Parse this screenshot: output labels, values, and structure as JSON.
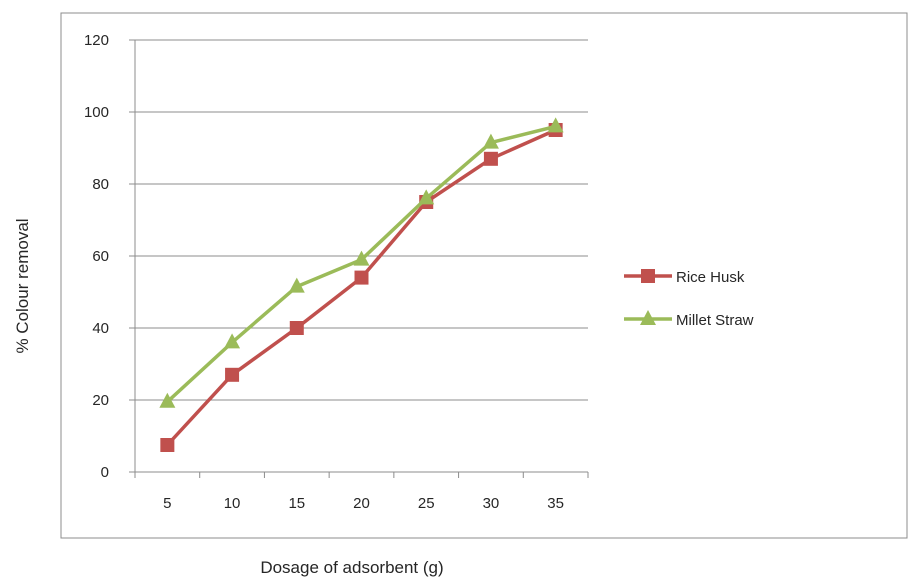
{
  "chart_data": {
    "type": "line",
    "title": "",
    "xlabel": "Dosage of adsorbent (g)",
    "ylabel": "% Colour removal",
    "categories": [
      "5",
      "10",
      "15",
      "20",
      "25",
      "30",
      "35"
    ],
    "ylim": [
      0,
      120
    ],
    "yticks": [
      0,
      20,
      40,
      60,
      80,
      100,
      120
    ],
    "grid": true,
    "legend_position": "right",
    "series": [
      {
        "name": "Rice Husk",
        "values": [
          7.5,
          27,
          40,
          54,
          75,
          87,
          95
        ],
        "color": "#c0504d",
        "marker": "square"
      },
      {
        "name": "Millet Straw",
        "values": [
          19.5,
          36,
          51.5,
          59,
          76,
          91.5,
          96
        ],
        "color": "#9bbb59",
        "marker": "triangle"
      }
    ]
  }
}
